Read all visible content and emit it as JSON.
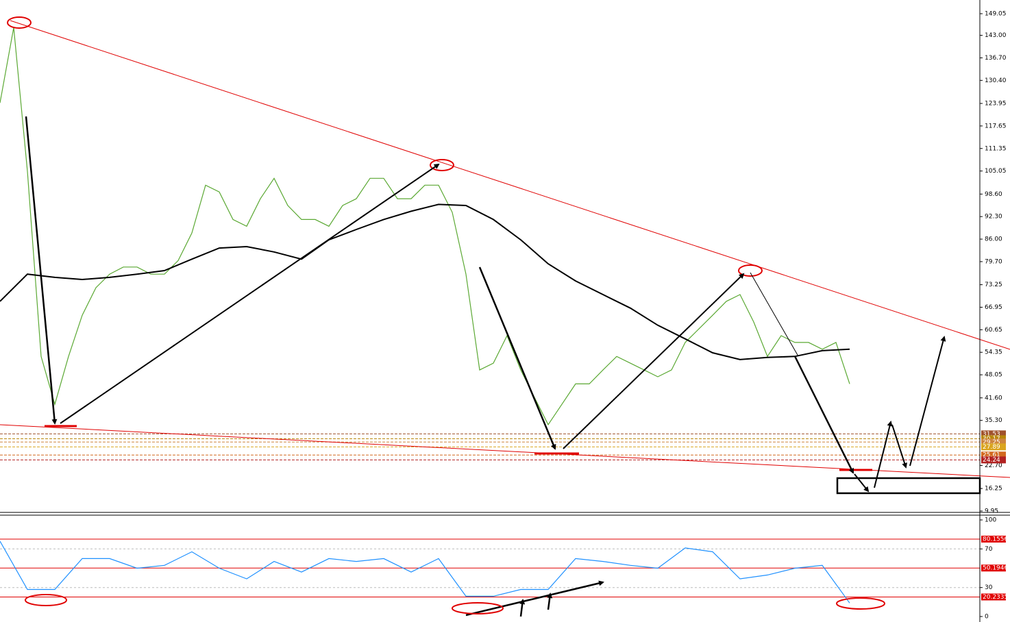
{
  "chart_data": [
    {
      "type": "line",
      "ylim": [
        9.18,
        152.88
      ],
      "yticks": [
        149.05,
        {
          "value": 143,
          "label": "143.00"
        },
        {
          "value": 136.7,
          "label": "136.70"
        },
        {
          "value": 130.4,
          "label": "130.40"
        },
        123.95,
        117.65,
        111.35,
        105.05,
        {
          "value": 98.6,
          "label": "98.60"
        },
        {
          "value": 92.3,
          "label": "92.30"
        },
        {
          "value": 86,
          "label": "86.00"
        },
        {
          "value": 79.7,
          "label": "79.70"
        },
        73.25,
        66.95,
        60.65,
        54.35,
        48.05,
        {
          "value": 41.6,
          "label": "41.60"
        },
        {
          "value": 35.3,
          "label": "35.30"
        },
        {
          "value": 22.7,
          "label": "22.70"
        },
        16.25,
        9.95
      ],
      "levels": [
        {
          "value": 31.53,
          "color": "#a0522d"
        },
        {
          "value": 30.17,
          "color": "#b8860b"
        },
        {
          "value": 29.25,
          "color": "#cd853f"
        },
        {
          "value": 27.89,
          "color": "#daa520"
        },
        {
          "value": 25.61,
          "color": "#d2691e"
        },
        {
          "value": 24.24,
          "color": "#b22222"
        }
      ],
      "series": [
        {
          "color": "#5aa832",
          "values": [
            124.1,
            145.2,
            105,
            53.2,
            39.8,
            53.2,
            64.7,
            72.4,
            76.2,
            78.2,
            78.2,
            76.2,
            76.2,
            80,
            87.7,
            101.1,
            99.2,
            91.5,
            89.6,
            97.3,
            103,
            95.4,
            91.5,
            91.5,
            89.6,
            95.4,
            97.3,
            103,
            103,
            97.3,
            97.3,
            101.1,
            101.1,
            93.5,
            76.2,
            49.4,
            51.3,
            59,
            49.4,
            41.7,
            34.1,
            39.8,
            45.5,
            45.5,
            49.4,
            53.2,
            51.3,
            49.4,
            47.5,
            49.4,
            57.1,
            60.9,
            64.7,
            68.6,
            70.5,
            62.8,
            53.2,
            59,
            57.1,
            57.1,
            55.2,
            57.1,
            45.5
          ]
        },
        {
          "color": "#000000",
          "values": [
            68.6,
            76.2,
            75.3,
            74.7,
            75.3,
            76.2,
            77.2,
            80.4,
            83.5,
            83.9,
            82.4,
            80.4,
            85.8,
            88.7,
            91.5,
            93.8,
            95.7,
            95.4,
            91.5,
            85.8,
            79.1,
            74.3,
            70.5,
            66.7,
            61.9,
            58.1,
            54.2,
            52.3,
            52.9,
            53.2,
            54.8,
            55.2
          ]
        }
      ]
    },
    {
      "type": "line",
      "ylim": [
        0,
        100
      ],
      "yticks": [
        100,
        70,
        30,
        0
      ],
      "levels": [
        80.1556,
        50.1946,
        20.2335
      ],
      "series": [
        {
          "color": "#1e90ff",
          "values": [
            78,
            28,
            28,
            60,
            60,
            50,
            53,
            67,
            50,
            39,
            57,
            46,
            60,
            57,
            60,
            46,
            60,
            21,
            21,
            28,
            28,
            60,
            57,
            53,
            50,
            71,
            67,
            39,
            43,
            50,
            53,
            14
          ]
        }
      ]
    }
  ]
}
